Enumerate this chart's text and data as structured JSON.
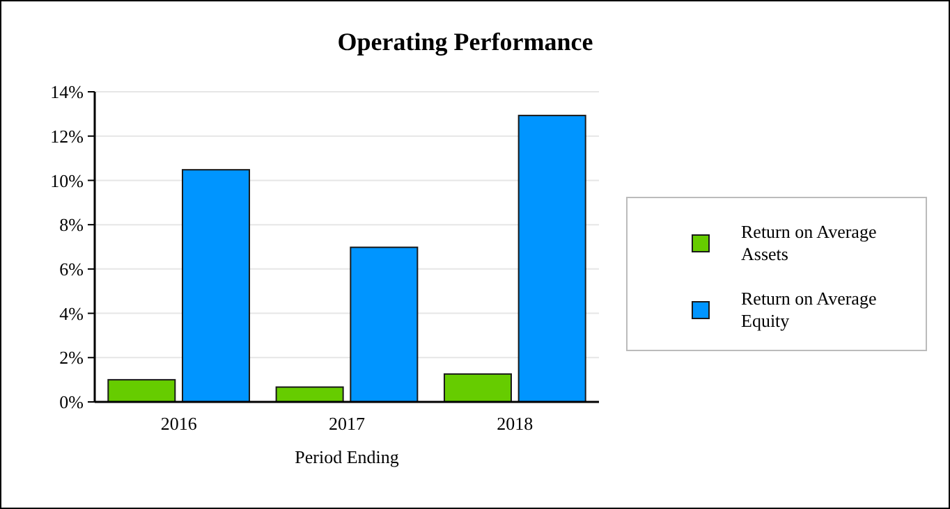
{
  "chart_data": {
    "type": "bar",
    "title": "Operating Performance",
    "xlabel": "Period Ending",
    "categories": [
      "2016",
      "2017",
      "2018"
    ],
    "series": [
      {
        "name": "Return on Average Assets",
        "color": "#66cc00",
        "values": [
          1.0,
          0.67,
          1.26
        ]
      },
      {
        "name": "Return on Average Equity",
        "color": "#0095ff",
        "values": [
          10.48,
          6.98,
          12.93
        ]
      }
    ],
    "ylim": [
      0,
      14
    ],
    "yticks": [
      {
        "value": 0,
        "label": "0%"
      },
      {
        "value": 2,
        "label": "2%"
      },
      {
        "value": 4,
        "label": "4%"
      },
      {
        "value": 6,
        "label": "6%"
      },
      {
        "value": 8,
        "label": "8%"
      },
      {
        "value": 10,
        "label": "10%"
      },
      {
        "value": 12,
        "label": "12%"
      },
      {
        "value": 14,
        "label": "14%"
      }
    ],
    "grid": "y",
    "legend": "right"
  }
}
